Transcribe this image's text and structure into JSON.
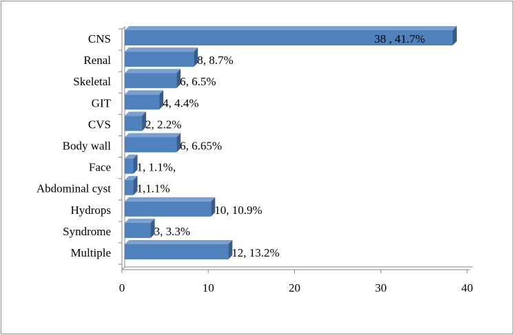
{
  "chart_data": {
    "type": "bar",
    "orientation": "horizontal",
    "style": "3d",
    "categories": [
      "CNS",
      "Renal",
      "Skeletal",
      "GIT",
      "CVS",
      "Body wall",
      "Face",
      "Abdominal cyst",
      "Hydrops",
      "Syndrome",
      "Multiple"
    ],
    "values": [
      38,
      8,
      6,
      4,
      2,
      6,
      1,
      1,
      10,
      3,
      12
    ],
    "data_labels": [
      "38 , 41.7%",
      "8, 8.7%",
      "6, 6.5%",
      "4, 4.4%",
      "2, 2.2%",
      "6, 6.65%",
      "1, 1.1%,",
      "1,1.1%",
      "10, 10.9%",
      "3, 3.3%",
      "12, 13.2%"
    ],
    "xlim": [
      0,
      40
    ],
    "xticks": [
      0,
      10,
      20,
      30,
      40
    ],
    "title": "",
    "xlabel": "",
    "ylabel": "",
    "grid": false,
    "legend": "none",
    "colors": {
      "bar_front": "#4f81bd",
      "bar_top": "#7aa0d2",
      "bar_side": "#385d8a",
      "axis": "#868686",
      "label_inside": "#ffffff",
      "label_outside": "#000000"
    }
  }
}
